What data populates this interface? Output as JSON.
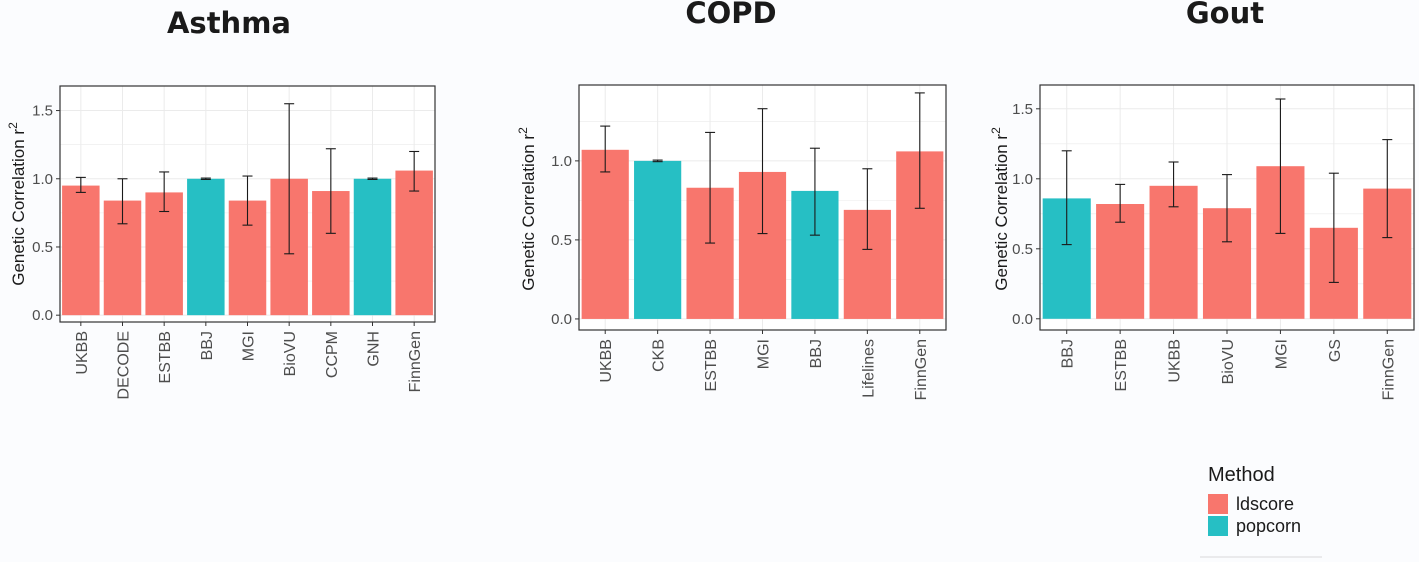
{
  "colors": {
    "ldscore": "#f8766d",
    "popcorn": "#26bfc4",
    "panel_bg": "#ffffff",
    "grid": "#ebebeb",
    "axis": "#333333"
  },
  "legend": {
    "title": "Method",
    "items": [
      {
        "label": "ldscore",
        "color": "#f8766d"
      },
      {
        "label": "popcorn",
        "color": "#26bfc4"
      }
    ]
  },
  "chart_data": [
    {
      "type": "bar",
      "title": "Asthma",
      "ylabel": "Genetic Correlation r",
      "ylabel_sup": "2",
      "ylim": [
        -0.05,
        1.68
      ],
      "yticks": [
        0.0,
        0.5,
        1.0,
        1.5
      ],
      "ytick_labels": [
        "0.0",
        "0.5",
        "1.0",
        "1.5"
      ],
      "categories": [
        "UKBB",
        "DECODE",
        "ESTBB",
        "BBJ",
        "MGI",
        "BioVU",
        "CCPM",
        "GNH",
        "FinnGen"
      ],
      "methods": [
        "ldscore",
        "ldscore",
        "ldscore",
        "popcorn",
        "ldscore",
        "ldscore",
        "ldscore",
        "popcorn",
        "ldscore"
      ],
      "values": [
        0.95,
        0.84,
        0.9,
        1.0,
        0.84,
        1.0,
        0.91,
        1.0,
        1.06
      ],
      "err_low": [
        0.9,
        0.67,
        0.76,
        0.995,
        0.66,
        0.45,
        0.6,
        0.995,
        0.91
      ],
      "err_high": [
        1.01,
        1.0,
        1.05,
        1.005,
        1.02,
        1.55,
        1.22,
        1.005,
        1.2
      ]
    },
    {
      "type": "bar",
      "title": "COPD",
      "ylabel": "Genetic Correlation r",
      "ylabel_sup": "2",
      "ylim": [
        -0.07,
        1.48
      ],
      "yticks": [
        0.0,
        0.5,
        1.0
      ],
      "ytick_labels": [
        "0.0",
        "0.5",
        "1.0"
      ],
      "categories": [
        "UKBB",
        "CKB",
        "ESTBB",
        "MGI",
        "BBJ",
        "Lifelines",
        "FinnGen"
      ],
      "methods": [
        "ldscore",
        "popcorn",
        "ldscore",
        "ldscore",
        "popcorn",
        "ldscore",
        "ldscore"
      ],
      "values": [
        1.07,
        1.0,
        0.83,
        0.93,
        0.81,
        0.69,
        1.06
      ],
      "err_low": [
        0.93,
        0.995,
        0.48,
        0.54,
        0.53,
        0.44,
        0.7
      ],
      "err_high": [
        1.22,
        1.005,
        1.18,
        1.33,
        1.08,
        0.95,
        1.43
      ]
    },
    {
      "type": "bar",
      "title": "Gout",
      "ylabel": "Genetic Correlation r",
      "ylabel_sup": "2",
      "ylim": [
        -0.08,
        1.67
      ],
      "yticks": [
        0.0,
        0.5,
        1.0,
        1.5
      ],
      "ytick_labels": [
        "0.0",
        "0.5",
        "1.0",
        "1.5"
      ],
      "categories": [
        "BBJ",
        "ESTBB",
        "UKBB",
        "BioVU",
        "MGI",
        "GS",
        "FinnGen"
      ],
      "methods": [
        "popcorn",
        "ldscore",
        "ldscore",
        "ldscore",
        "ldscore",
        "ldscore",
        "ldscore"
      ],
      "values": [
        0.86,
        0.82,
        0.95,
        0.79,
        1.09,
        0.65,
        0.93
      ],
      "err_low": [
        0.53,
        0.69,
        0.8,
        0.55,
        0.61,
        0.26,
        0.58
      ],
      "err_high": [
        1.2,
        0.96,
        1.12,
        1.03,
        1.57,
        1.04,
        1.28
      ]
    }
  ]
}
